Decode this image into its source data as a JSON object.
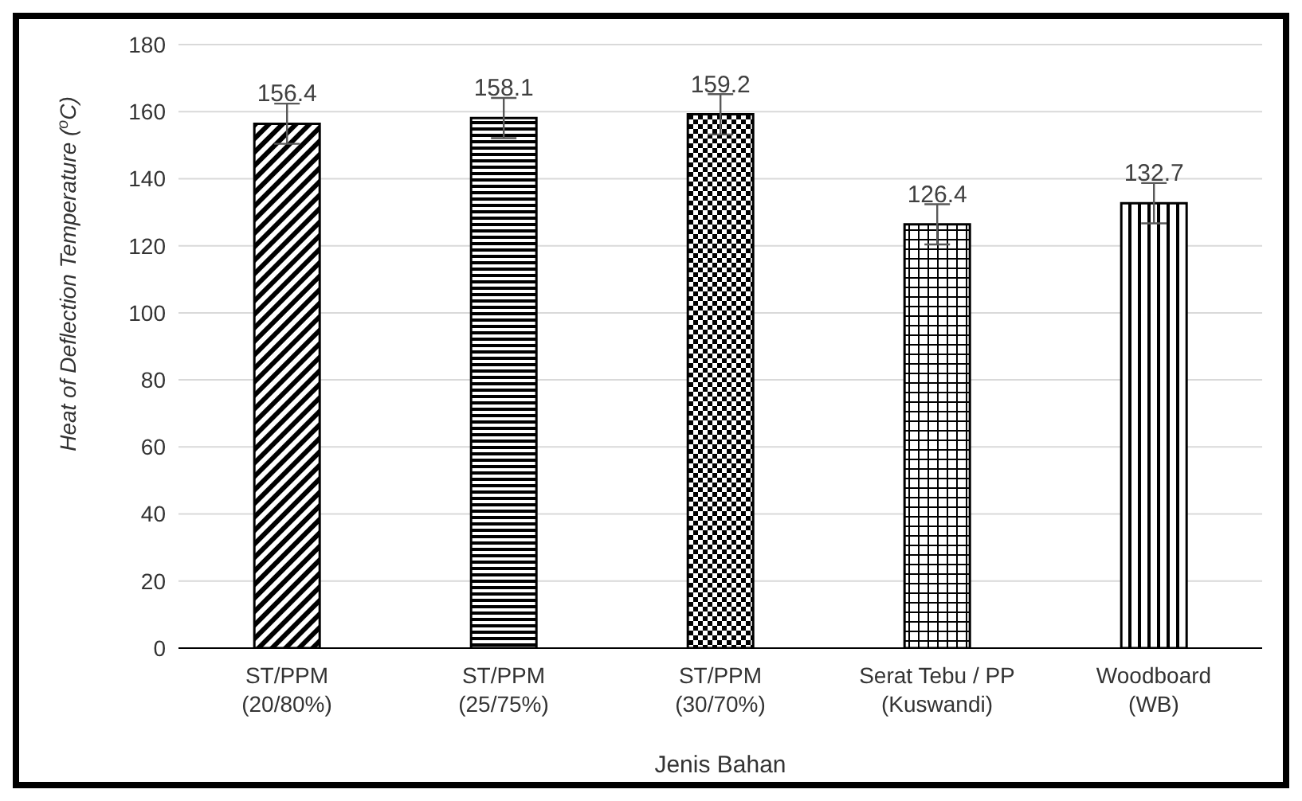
{
  "chart_data": {
    "type": "bar",
    "xlabel": "Jenis Bahan",
    "ylabel": "Heat of Deflection Temperature ($^{o}$C)",
    "categories": [
      "ST/PPM\n(20/80%)",
      "ST/PPM\n(25/75%)",
      "ST/PPM\n(30/70%)",
      "Serat Tebu / PP\n(Kuswandi)",
      "Woodboard\n(WB)"
    ],
    "values": [
      156.4,
      158.1,
      159.2,
      126.4,
      132.7
    ],
    "errors": [
      6,
      6,
      6,
      6,
      6
    ],
    "colors": [
      "#000000",
      "#000000",
      "#000000",
      "#000000",
      "#000000"
    ],
    "data_labels": true,
    "ylim": [
      0,
      180
    ],
    "yticks": [
      0,
      20,
      40,
      60,
      80,
      100,
      120,
      140,
      160,
      180
    ],
    "grid": "y"
  }
}
